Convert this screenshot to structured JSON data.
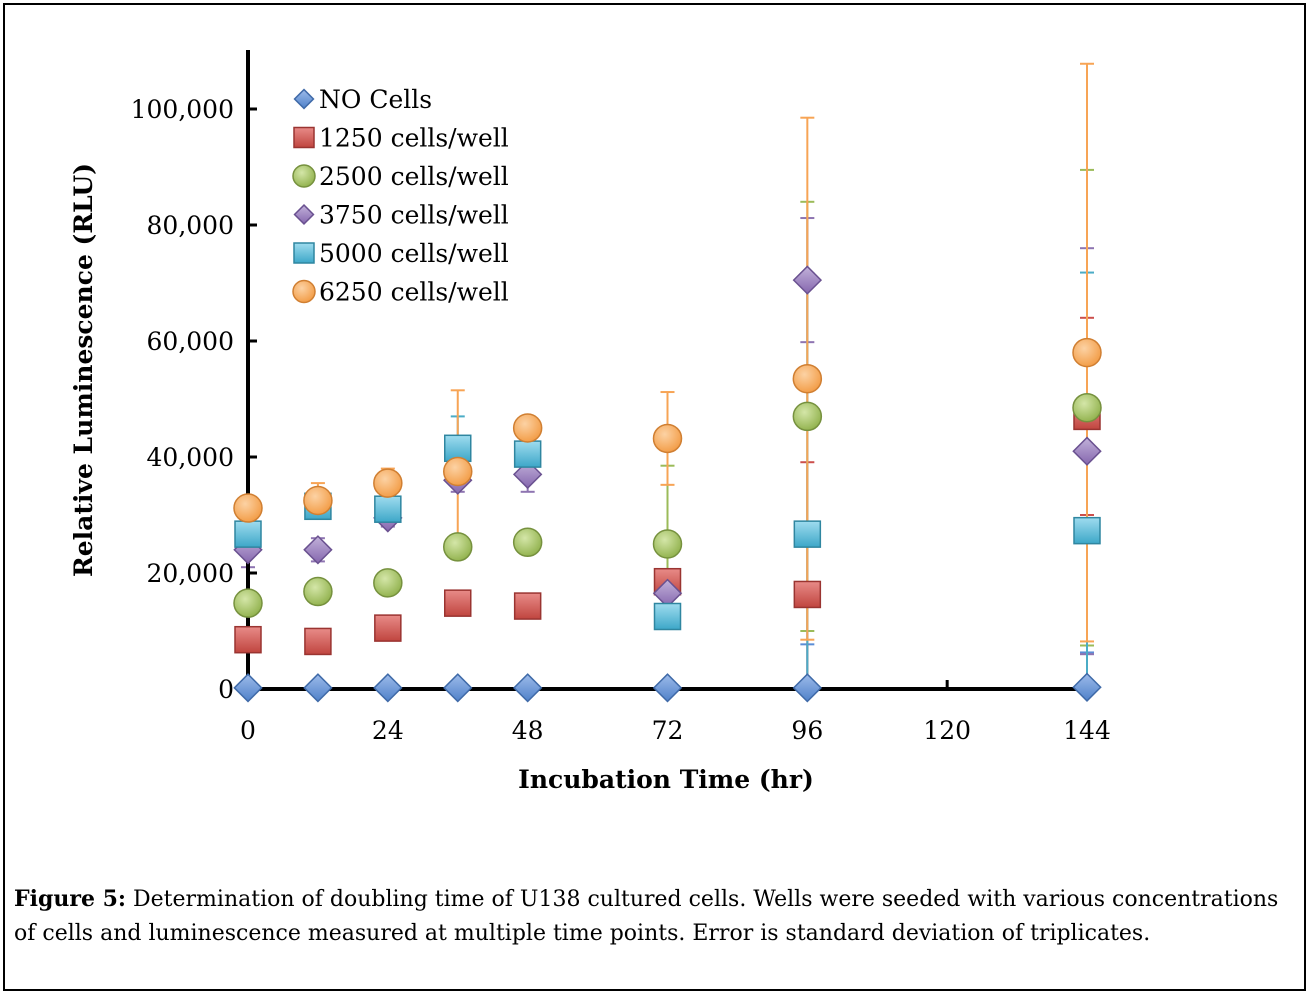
{
  "chart_data": {
    "type": "scatter",
    "xlabel": "Incubation Time (hr)",
    "ylabel": "Relative Luminescence (RLU)",
    "xlim": [
      0,
      144
    ],
    "ylim": [
      0,
      110000
    ],
    "xticks": [
      0,
      24,
      48,
      72,
      96,
      120,
      144
    ],
    "xtick_labels": [
      "0",
      "24",
      "48",
      "72",
      "96",
      "120",
      "144"
    ],
    "yticks": [
      0,
      20000,
      40000,
      60000,
      80000,
      100000
    ],
    "ytick_labels": [
      "0",
      "20,000",
      "40,000",
      "60,000",
      "80,000",
      "100,000"
    ],
    "legend_position": "top-left",
    "grid": false,
    "series": [
      {
        "name": "NO Cells",
        "marker": "diamond",
        "color": "#5b8dd6",
        "x": [
          0,
          12,
          24,
          36,
          48,
          72,
          96,
          144
        ],
        "y": [
          200,
          200,
          200,
          200,
          200,
          200,
          200,
          300
        ],
        "err": [
          200,
          200,
          200,
          200,
          200,
          200,
          7500,
          6000
        ]
      },
      {
        "name": "1250 cells/well",
        "marker": "square",
        "color": "#cc4f4c",
        "x": [
          0,
          12,
          24,
          36,
          48,
          72,
          96,
          144
        ],
        "y": [
          8500,
          8200,
          10500,
          14800,
          14300,
          18500,
          16300,
          47000
        ],
        "err": [
          600,
          600,
          700,
          900,
          900,
          1500,
          22800,
          17000
        ]
      },
      {
        "name": "2500 cells/well",
        "marker": "circle",
        "color": "#9bbb59",
        "x": [
          0,
          12,
          24,
          36,
          48,
          72,
          96,
          144
        ],
        "y": [
          14800,
          16800,
          18300,
          24500,
          25300,
          25000,
          47000,
          48500
        ],
        "err": [
          700,
          900,
          1000,
          1200,
          1200,
          13500,
          37000,
          41000
        ]
      },
      {
        "name": "3750 cells/well",
        "marker": "diamond",
        "color": "#8e74b1",
        "x": [
          0,
          12,
          24,
          36,
          48,
          72,
          96,
          144
        ],
        "y": [
          24000,
          24000,
          29500,
          36000,
          37000,
          16500,
          70500,
          41000
        ],
        "err": [
          3000,
          2000,
          1500,
          2000,
          3000,
          1000,
          10700,
          35000
        ]
      },
      {
        "name": "5000 cells/well",
        "marker": "square",
        "color": "#4bacc6",
        "x": [
          0,
          12,
          24,
          36,
          48,
          72,
          96,
          144
        ],
        "y": [
          26700,
          31500,
          31000,
          41500,
          40500,
          12500,
          26700,
          27300
        ],
        "err": [
          900,
          1000,
          1000,
          5500,
          1500,
          1500,
          45000,
          44500
        ]
      },
      {
        "name": "6250 cells/well",
        "marker": "circle",
        "color": "#f7a455",
        "x": [
          0,
          12,
          24,
          36,
          48,
          72,
          96,
          144
        ],
        "y": [
          31200,
          32500,
          35500,
          37500,
          45000,
          43200,
          53500,
          58000
        ],
        "err": [
          1000,
          3000,
          2500,
          14000,
          1200,
          8000,
          45000,
          49800
        ]
      }
    ]
  },
  "caption": {
    "label": "Figure 5:",
    "text": " Determination of doubling time of U138 cultured cells. Wells were seeded with various concentrations of cells and luminescence measured at multiple time points. Error is standard deviation of triplicates."
  }
}
